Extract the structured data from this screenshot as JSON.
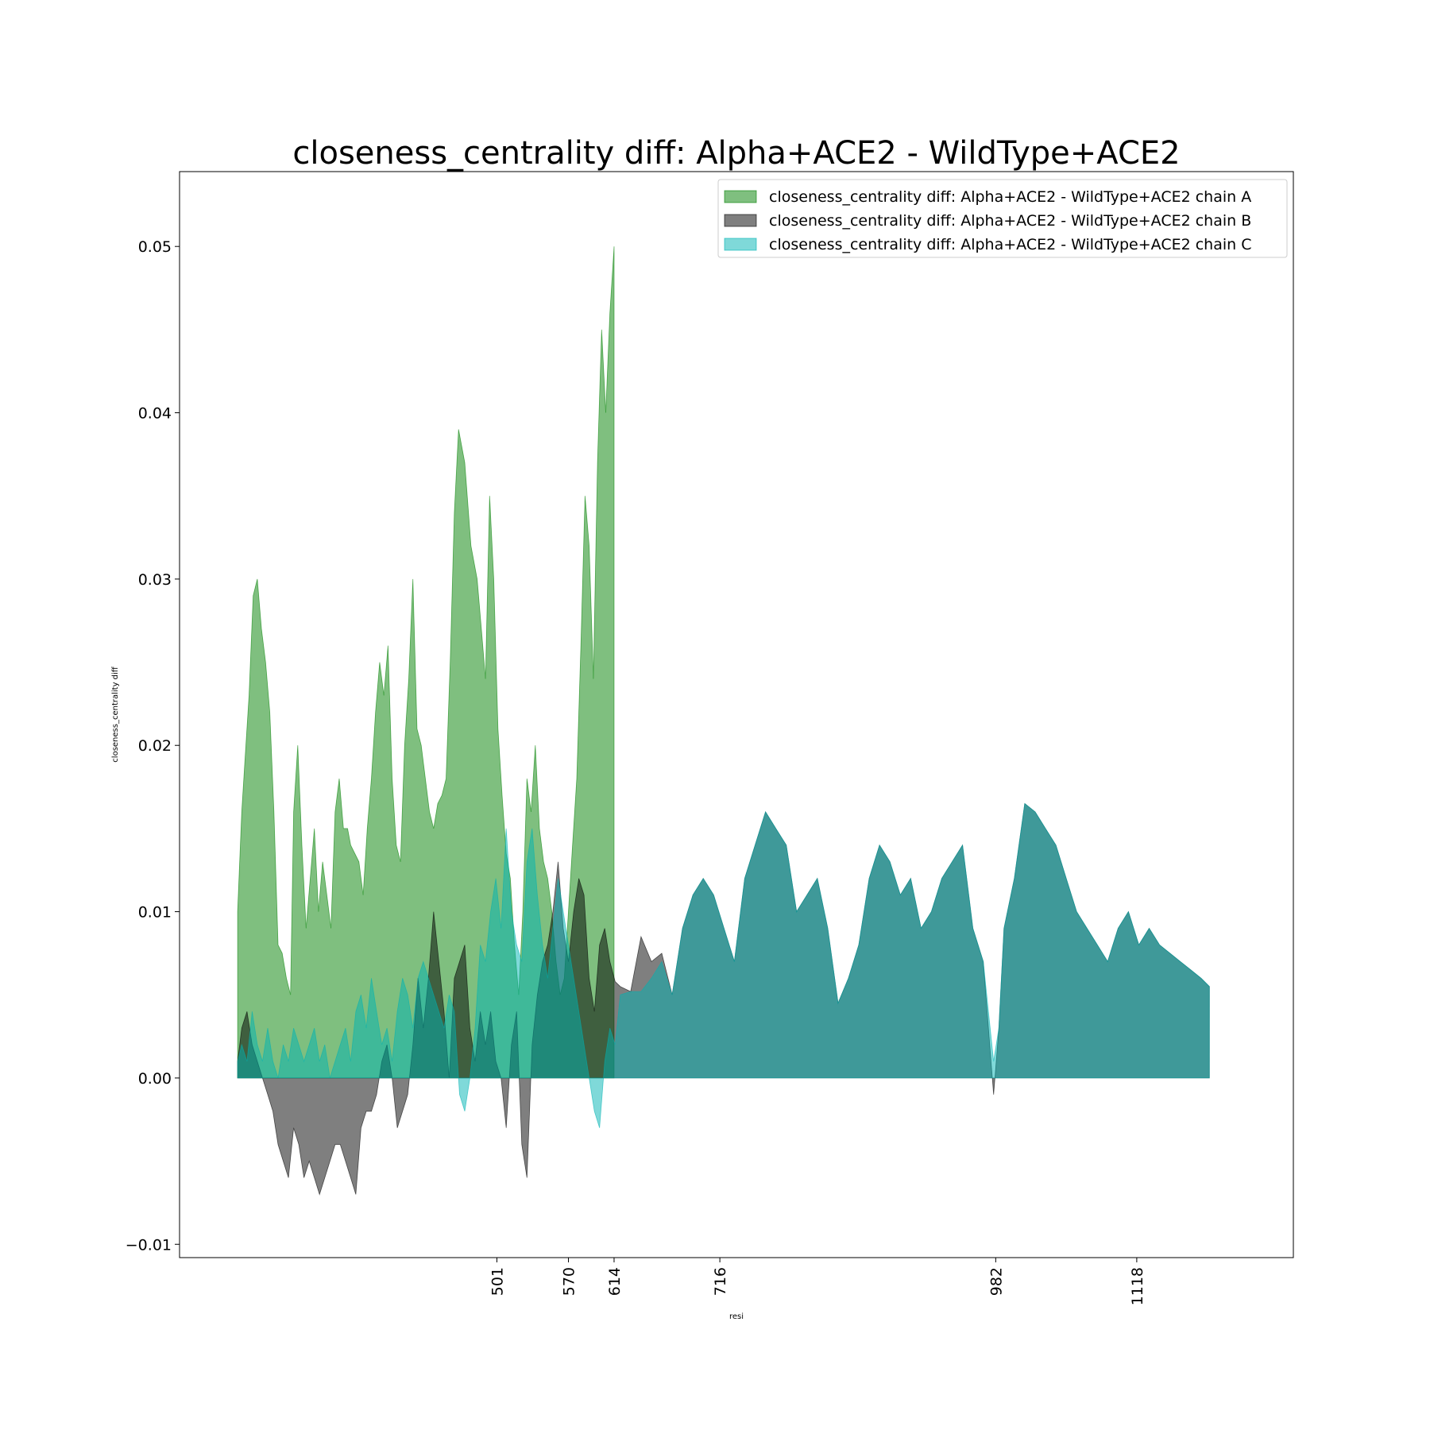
{
  "chart_data": {
    "type": "area",
    "title": "closeness_centrality diff: Alpha+ACE2 - WildType+ACE2",
    "xlabel": "resi",
    "ylabel": "closeness_centrality diff",
    "xlim": [
      195,
      1269
    ],
    "ylim": [
      -0.0108,
      0.0545
    ],
    "yticks": [
      -0.01,
      0.0,
      0.01,
      0.02,
      0.03,
      0.04,
      0.05
    ],
    "ytick_labels": [
      "−0.01",
      "0.00",
      "0.01",
      "0.02",
      "0.03",
      "0.04",
      "0.05"
    ],
    "xticks": [
      501,
      570,
      614,
      716,
      982,
      1118
    ],
    "xtick_labels": [
      "501",
      "570",
      "614",
      "716",
      "982",
      "1118"
    ],
    "grid": false,
    "legend_position": "top-right",
    "series": [
      {
        "name": "closeness_centrality diff: Alpha+ACE2 - WildType+ACE2 chain A",
        "color": "#008000",
        "opacity": 0.5,
        "x": [
          251,
          255,
          258,
          262,
          266,
          270,
          274,
          278,
          282,
          286,
          290,
          294,
          298,
          302,
          305,
          309,
          313,
          317,
          321,
          325,
          329,
          333,
          337,
          341,
          345,
          349,
          353,
          357,
          360,
          364,
          368,
          372,
          376,
          380,
          384,
          388,
          392,
          396,
          400,
          404,
          408,
          412,
          416,
          420,
          424,
          428,
          432,
          436,
          440,
          444,
          448,
          452,
          456,
          460,
          464,
          470,
          476,
          482,
          486,
          490,
          494,
          498,
          502,
          506,
          510,
          514,
          518,
          522,
          526,
          530,
          534,
          538,
          542,
          546,
          550,
          554,
          558,
          562,
          566,
          570,
          574,
          578,
          582,
          586,
          590,
          594,
          598,
          602,
          606,
          610,
          614
        ],
        "y": [
          0.01,
          0.016,
          0.019,
          0.023,
          0.029,
          0.03,
          0.027,
          0.025,
          0.022,
          0.016,
          0.008,
          0.0075,
          0.006,
          0.005,
          0.016,
          0.02,
          0.014,
          0.009,
          0.012,
          0.015,
          0.01,
          0.013,
          0.011,
          0.009,
          0.016,
          0.018,
          0.015,
          0.015,
          0.014,
          0.0135,
          0.013,
          0.011,
          0.015,
          0.018,
          0.022,
          0.025,
          0.023,
          0.026,
          0.018,
          0.014,
          0.013,
          0.02,
          0.024,
          0.03,
          0.021,
          0.02,
          0.018,
          0.016,
          0.015,
          0.0165,
          0.017,
          0.018,
          0.025,
          0.034,
          0.039,
          0.037,
          0.032,
          0.03,
          0.027,
          0.024,
          0.035,
          0.03,
          0.021,
          0.017,
          0.0135,
          0.012,
          0.008,
          0.005,
          0.01,
          0.018,
          0.016,
          0.02,
          0.015,
          0.013,
          0.012,
          0.01,
          0.007,
          0.005,
          0.006,
          0.01,
          0.014,
          0.018,
          0.026,
          0.035,
          0.032,
          0.024,
          0.037,
          0.045,
          0.04,
          0.046,
          0.05
        ]
      },
      {
        "name": "closeness_centrality diff: Alpha+ACE2 - WildType+ACE2 chain B",
        "color": "#000000",
        "opacity": 0.5,
        "x": [
          251,
          255,
          260,
          265,
          270,
          275,
          280,
          285,
          290,
          295,
          300,
          305,
          310,
          315,
          320,
          325,
          330,
          335,
          340,
          345,
          350,
          355,
          360,
          365,
          370,
          375,
          380,
          385,
          390,
          395,
          400,
          405,
          410,
          415,
          420,
          425,
          430,
          435,
          440,
          445,
          450,
          455,
          460,
          465,
          470,
          475,
          480,
          485,
          490,
          495,
          500,
          505,
          510,
          515,
          520,
          525,
          530,
          535,
          540,
          545,
          550,
          555,
          560,
          565,
          570,
          575,
          580,
          585,
          590,
          595,
          600,
          605,
          610,
          615,
          620,
          630,
          640,
          650,
          660,
          670,
          680,
          690,
          700,
          710,
          720,
          730,
          740,
          750,
          760,
          770,
          780,
          790,
          800,
          810,
          820,
          830,
          840,
          850,
          860,
          870,
          880,
          890,
          900,
          910,
          920,
          930,
          940,
          950,
          960,
          970,
          980,
          985,
          990,
          1000,
          1010,
          1020,
          1030,
          1040,
          1050,
          1060,
          1070,
          1080,
          1090,
          1100,
          1110,
          1120,
          1130,
          1140,
          1150,
          1160,
          1170,
          1180,
          1188
        ],
        "y": [
          0.001,
          0.003,
          0.004,
          0.002,
          0.001,
          0.0,
          -0.001,
          -0.002,
          -0.004,
          -0.005,
          -0.006,
          -0.003,
          -0.004,
          -0.006,
          -0.005,
          -0.006,
          -0.007,
          -0.006,
          -0.005,
          -0.004,
          -0.004,
          -0.005,
          -0.006,
          -0.007,
          -0.003,
          -0.002,
          -0.002,
          -0.001,
          0.001,
          0.002,
          0.0,
          -0.003,
          -0.002,
          -0.001,
          0.002,
          0.006,
          0.003,
          0.006,
          0.01,
          0.007,
          0.004,
          0.0,
          0.006,
          0.007,
          0.008,
          0.003,
          0.001,
          0.004,
          0.002,
          0.004,
          0.001,
          0.0,
          -0.003,
          0.002,
          0.004,
          -0.004,
          -0.006,
          0.002,
          0.005,
          0.007,
          0.008,
          0.01,
          0.013,
          0.009,
          0.007,
          0.01,
          0.012,
          0.011,
          0.006,
          0.004,
          0.008,
          0.009,
          0.007,
          0.0058,
          0.0055,
          0.0052,
          0.0085,
          0.007,
          0.0075,
          0.005,
          0.009,
          0.011,
          0.012,
          0.011,
          0.009,
          0.007,
          0.012,
          0.014,
          0.016,
          0.015,
          0.014,
          0.01,
          0.011,
          0.012,
          0.009,
          0.0045,
          0.006,
          0.008,
          0.012,
          0.014,
          0.013,
          0.011,
          0.012,
          0.009,
          0.01,
          0.012,
          0.013,
          0.014,
          0.009,
          0.007,
          -0.001,
          0.003,
          0.009,
          0.012,
          0.0165,
          0.016,
          0.015,
          0.014,
          0.012,
          0.01,
          0.009,
          0.008,
          0.007,
          0.009,
          0.01,
          0.008,
          0.009,
          0.008,
          0.0075,
          0.007,
          0.0065,
          0.006,
          0.0055
        ]
      },
      {
        "name": "closeness_centrality diff: Alpha+ACE2 - WildType+ACE2 chain C",
        "color": "#00b3b3",
        "opacity": 0.5,
        "x": [
          251,
          255,
          260,
          265,
          270,
          275,
          280,
          285,
          290,
          295,
          300,
          305,
          310,
          315,
          320,
          325,
          330,
          335,
          340,
          345,
          350,
          355,
          360,
          365,
          370,
          375,
          380,
          385,
          390,
          395,
          400,
          405,
          410,
          415,
          420,
          425,
          430,
          435,
          440,
          445,
          450,
          455,
          460,
          465,
          470,
          475,
          480,
          485,
          490,
          495,
          500,
          505,
          510,
          515,
          520,
          525,
          530,
          535,
          540,
          545,
          550,
          555,
          560,
          565,
          570,
          575,
          580,
          585,
          590,
          595,
          600,
          605,
          610,
          615,
          620,
          630,
          640,
          650,
          660,
          670,
          680,
          690,
          700,
          710,
          720,
          730,
          740,
          750,
          760,
          770,
          780,
          790,
          800,
          810,
          820,
          830,
          840,
          850,
          860,
          870,
          880,
          890,
          900,
          910,
          920,
          930,
          940,
          950,
          960,
          970,
          980,
          985,
          990,
          1000,
          1010,
          1020,
          1030,
          1040,
          1050,
          1060,
          1070,
          1080,
          1090,
          1100,
          1110,
          1120,
          1130,
          1140,
          1150,
          1160,
          1170,
          1180,
          1188
        ],
        "y": [
          0.001,
          0.002,
          0.001,
          0.004,
          0.002,
          0.001,
          0.003,
          0.001,
          0.0,
          0.002,
          0.001,
          0.003,
          0.002,
          0.001,
          0.002,
          0.003,
          0.001,
          0.002,
          0.0,
          0.001,
          0.002,
          0.003,
          0.001,
          0.004,
          0.005,
          0.003,
          0.006,
          0.004,
          0.002,
          0.003,
          0.001,
          0.004,
          0.006,
          0.005,
          0.003,
          0.006,
          0.007,
          0.006,
          0.005,
          0.004,
          0.003,
          0.005,
          0.004,
          -0.001,
          -0.002,
          0.0,
          0.003,
          0.008,
          0.007,
          0.01,
          0.012,
          0.009,
          0.015,
          0.01,
          0.008,
          0.007,
          0.013,
          0.015,
          0.011,
          0.008,
          0.006,
          0.009,
          0.012,
          0.01,
          0.008,
          0.006,
          0.004,
          0.002,
          0.0,
          -0.002,
          -0.003,
          0.001,
          0.003,
          0.002,
          0.005,
          0.0052,
          0.0052,
          0.006,
          0.007,
          0.005,
          0.009,
          0.011,
          0.012,
          0.011,
          0.009,
          0.007,
          0.012,
          0.014,
          0.016,
          0.015,
          0.014,
          0.01,
          0.011,
          0.012,
          0.009,
          0.0045,
          0.006,
          0.008,
          0.012,
          0.014,
          0.013,
          0.011,
          0.012,
          0.009,
          0.01,
          0.012,
          0.013,
          0.014,
          0.009,
          0.007,
          0.001,
          0.003,
          0.009,
          0.012,
          0.0165,
          0.016,
          0.015,
          0.014,
          0.012,
          0.01,
          0.009,
          0.008,
          0.007,
          0.009,
          0.01,
          0.008,
          0.009,
          0.008,
          0.0075,
          0.007,
          0.0065,
          0.006,
          0.0055
        ]
      }
    ]
  }
}
